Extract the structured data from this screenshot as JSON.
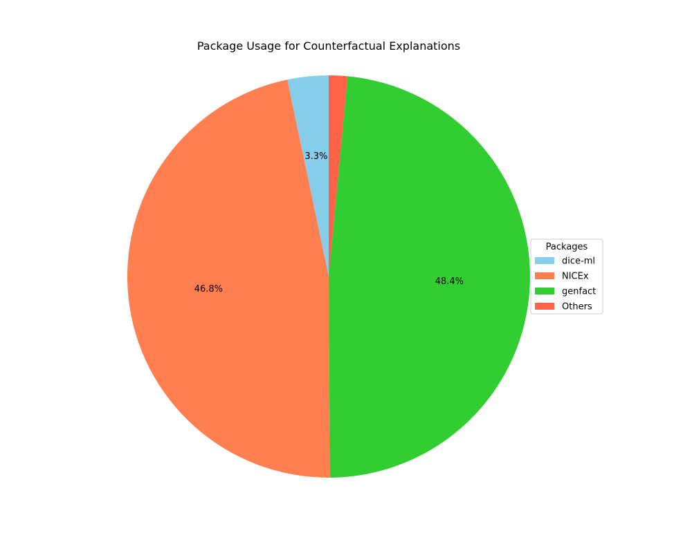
{
  "chart_data": {
    "type": "pie",
    "title": "Package Usage for Counterfactual Explanations",
    "categories": [
      "dice-ml",
      "NICEx",
      "genfact",
      "Others"
    ],
    "values": [
      3.3,
      46.8,
      48.4,
      1.5
    ],
    "labels": [
      "3.3%",
      "46.8%",
      "48.4%",
      ""
    ],
    "colors": [
      "#87ceeb",
      "#ff7f50",
      "#32cd32",
      "#ff6347"
    ],
    "start_angle_deg": 90,
    "direction": "counterclockwise",
    "legend": {
      "title": "Packages",
      "placement": "center-right"
    }
  }
}
